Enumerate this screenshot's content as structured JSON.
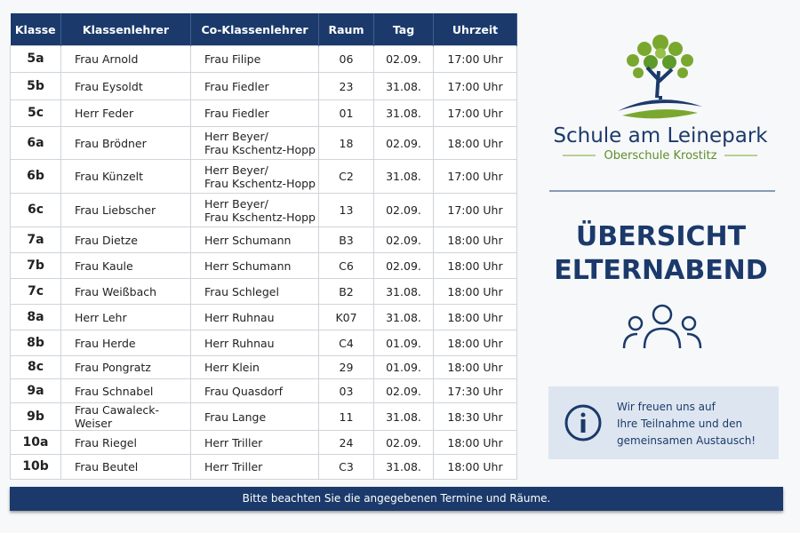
{
  "table": {
    "header": [
      "Klasse",
      "Klassenlehrer",
      "Co-Klassenlehrer",
      "Raum",
      "Tag",
      "Uhrzeit"
    ],
    "rows": [
      [
        "5a",
        "Frau Arnold",
        "Frau Filipe",
        "06",
        "02.09.",
        "17:00 Uhr"
      ],
      [
        "5b",
        "Frau Eysoldt",
        "Frau Fiedler",
        "23",
        "31.08.",
        "17:00 Uhr"
      ],
      [
        "5c",
        "Herr Feder",
        "Frau Fiedler",
        "01",
        "31.08.",
        "17:00 Uhr"
      ],
      [
        "6a",
        "Frau Brödner",
        "Herr Beyer/\nFrau Kschentz-Hopp",
        "18",
        "02.09.",
        "18:00 Uhr"
      ],
      [
        "6b",
        "Frau Künzelt",
        "Herr Beyer/\nFrau Kschentz-Hopp",
        "C2",
        "31.08.",
        "17:00 Uhr"
      ],
      [
        "6c",
        "Frau Liebscher",
        "Herr Beyer/\nFrau Kschentz-Hopp",
        "13",
        "02.09.",
        "17:00 Uhr"
      ],
      [
        "7a",
        "Frau Dietze",
        "Herr Schumann",
        "B3",
        "02.09.",
        "18:00 Uhr"
      ],
      [
        "7b",
        "Frau Kaule",
        "Herr Schumann",
        "C6",
        "02.09.",
        "18:00 Uhr"
      ],
      [
        "7c",
        "Frau Weißbach",
        "Frau Schlegel",
        "B2",
        "31.08.",
        "18:00 Uhr"
      ],
      [
        "8a",
        "Herr Lehr",
        "Herr Ruhnau",
        "K07",
        "31.08.",
        "18:00 Uhr"
      ],
      [
        "8b",
        "Frau Herde",
        "Herr Ruhnau",
        "C4",
        "01.09.",
        "18:00 Uhr"
      ],
      [
        "8c",
        "Frau Pongratz",
        "Herr Klein",
        "29",
        "01.09.",
        "18:00 Uhr"
      ],
      [
        "9a",
        "Frau Schnabel",
        "Frau Quasdorf",
        "03",
        "02.09.",
        "17:30 Uhr"
      ],
      [
        "9b",
        "Frau Cawaleck-Weiser",
        "Frau Lange",
        "11",
        "31.08.",
        "18:30 Uhr"
      ],
      [
        "10a",
        "Frau Riegel",
        "Herr Triller",
        "24",
        "02.09.",
        "18:00 Uhr"
      ],
      [
        "10b",
        "Frau Beutel",
        "Herr Triller",
        "C3",
        "31.08.",
        "18:00 Uhr"
      ]
    ]
  },
  "school": {
    "name": "Schule am Leinepark",
    "subtitle": "Oberschule Krostitz"
  },
  "title_lines": [
    "ÜBERSICHT",
    "ELTERNABEND"
  ],
  "info": {
    "lines": [
      "Wir freuen uns auf",
      "Ihre Teilnahme und den",
      "gemeinsamen Austausch!"
    ]
  },
  "footer": "Bitte beachten Sie die angegebenen Termine und Räume."
}
